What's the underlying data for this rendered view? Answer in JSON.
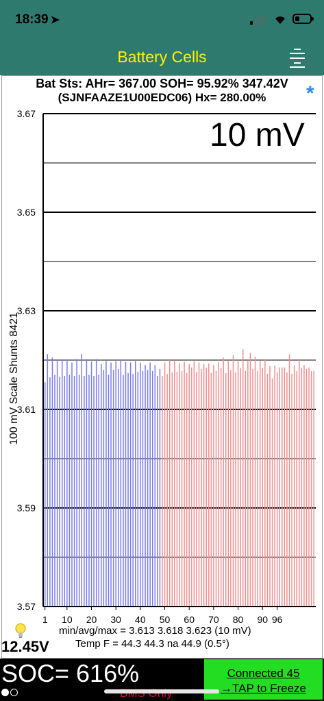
{
  "status_bar": {
    "time": "18:39",
    "location_arrow": "location-arrow-icon"
  },
  "nav": {
    "title": "Battery Cells",
    "menu_icon": "hamburger-menu-icon"
  },
  "header": {
    "line1": "Bat Sts: AHr= 367.00 SOH= 95.92% 347.42V",
    "line2": "(SJNFAAZE1U00EDC06)   Hx= 280.00%",
    "asterisk": "*"
  },
  "chart_data": {
    "type": "bar",
    "scale_label": "10 mV",
    "ylabel": "100 mV Scale   Shunts 8421",
    "ylim": [
      3.57,
      3.67
    ],
    "y_ticks": [
      "3.67",
      "3.65",
      "3.63",
      "3.61",
      "3.59",
      "3.57"
    ],
    "x_ticks": [
      "1",
      "10",
      "20",
      "30",
      "40",
      "50",
      "60",
      "70",
      "80",
      "90",
      "96"
    ],
    "colors": {
      "group1": "#7b7bef",
      "group2": "#ef8f8f"
    },
    "series": [
      {
        "values": [
          3.6155,
          3.6212,
          3.6165,
          3.6205,
          3.617,
          3.6198,
          3.6166,
          3.62,
          3.6168,
          3.62,
          3.617,
          3.6195,
          3.6168,
          3.6202,
          3.617,
          3.6213,
          3.6168,
          3.6202,
          3.617,
          3.6197,
          3.6168,
          3.6202,
          3.617,
          3.6192,
          3.618,
          3.6198,
          3.617,
          3.6195,
          3.618,
          3.6198,
          3.6182,
          3.62,
          3.617,
          3.6196,
          3.6174,
          3.6195,
          3.6172,
          3.6198,
          3.6176,
          3.6195,
          3.6178,
          3.619,
          3.618,
          3.6195,
          3.6178,
          3.619,
          3.6168,
          3.6182
        ]
      },
      {
        "values": [
          3.6168,
          3.6195,
          3.6172,
          3.62,
          3.6175,
          3.6198,
          3.6176,
          3.6194,
          3.6178,
          3.6196,
          3.6174,
          3.6192,
          3.6185,
          3.6198,
          3.6176,
          3.6195,
          3.6182,
          3.6192,
          3.6184,
          3.6193,
          3.6174,
          3.619,
          3.6178,
          3.6196,
          3.6184,
          3.6205,
          3.6174,
          3.6198,
          3.618,
          3.621,
          3.6175,
          3.6198,
          3.6184,
          3.6222,
          3.6178,
          3.6198,
          3.6214,
          3.6182,
          3.6207,
          3.6178,
          3.6198,
          3.6184,
          3.6202,
          3.6172,
          3.6188,
          3.6163,
          3.6189,
          3.6175,
          3.6185,
          3.6185,
          3.6185,
          3.6175,
          3.6212,
          3.6172,
          3.619,
          3.6178,
          3.62,
          3.6184,
          3.619,
          3.6182,
          3.6185,
          3.6178,
          3.6178
        ]
      }
    ]
  },
  "stats": {
    "bulb_icon": "lightbulb-icon",
    "min_avg_max": "min/avg/max = 3.613  3.618  3.623   (10 mV)",
    "temp": "Temp F = 44.3   44.3   na   44.9   (0.5°)",
    "pack_voltage": "12.45V"
  },
  "footer": {
    "soc": "SOC= 616%",
    "bms": "BMS Only",
    "connected": "Connected 45",
    "tap": "→TAP to Freeze",
    "colors": {
      "connect_bg": "#22dd22",
      "bms_text": "#c8102e"
    }
  }
}
